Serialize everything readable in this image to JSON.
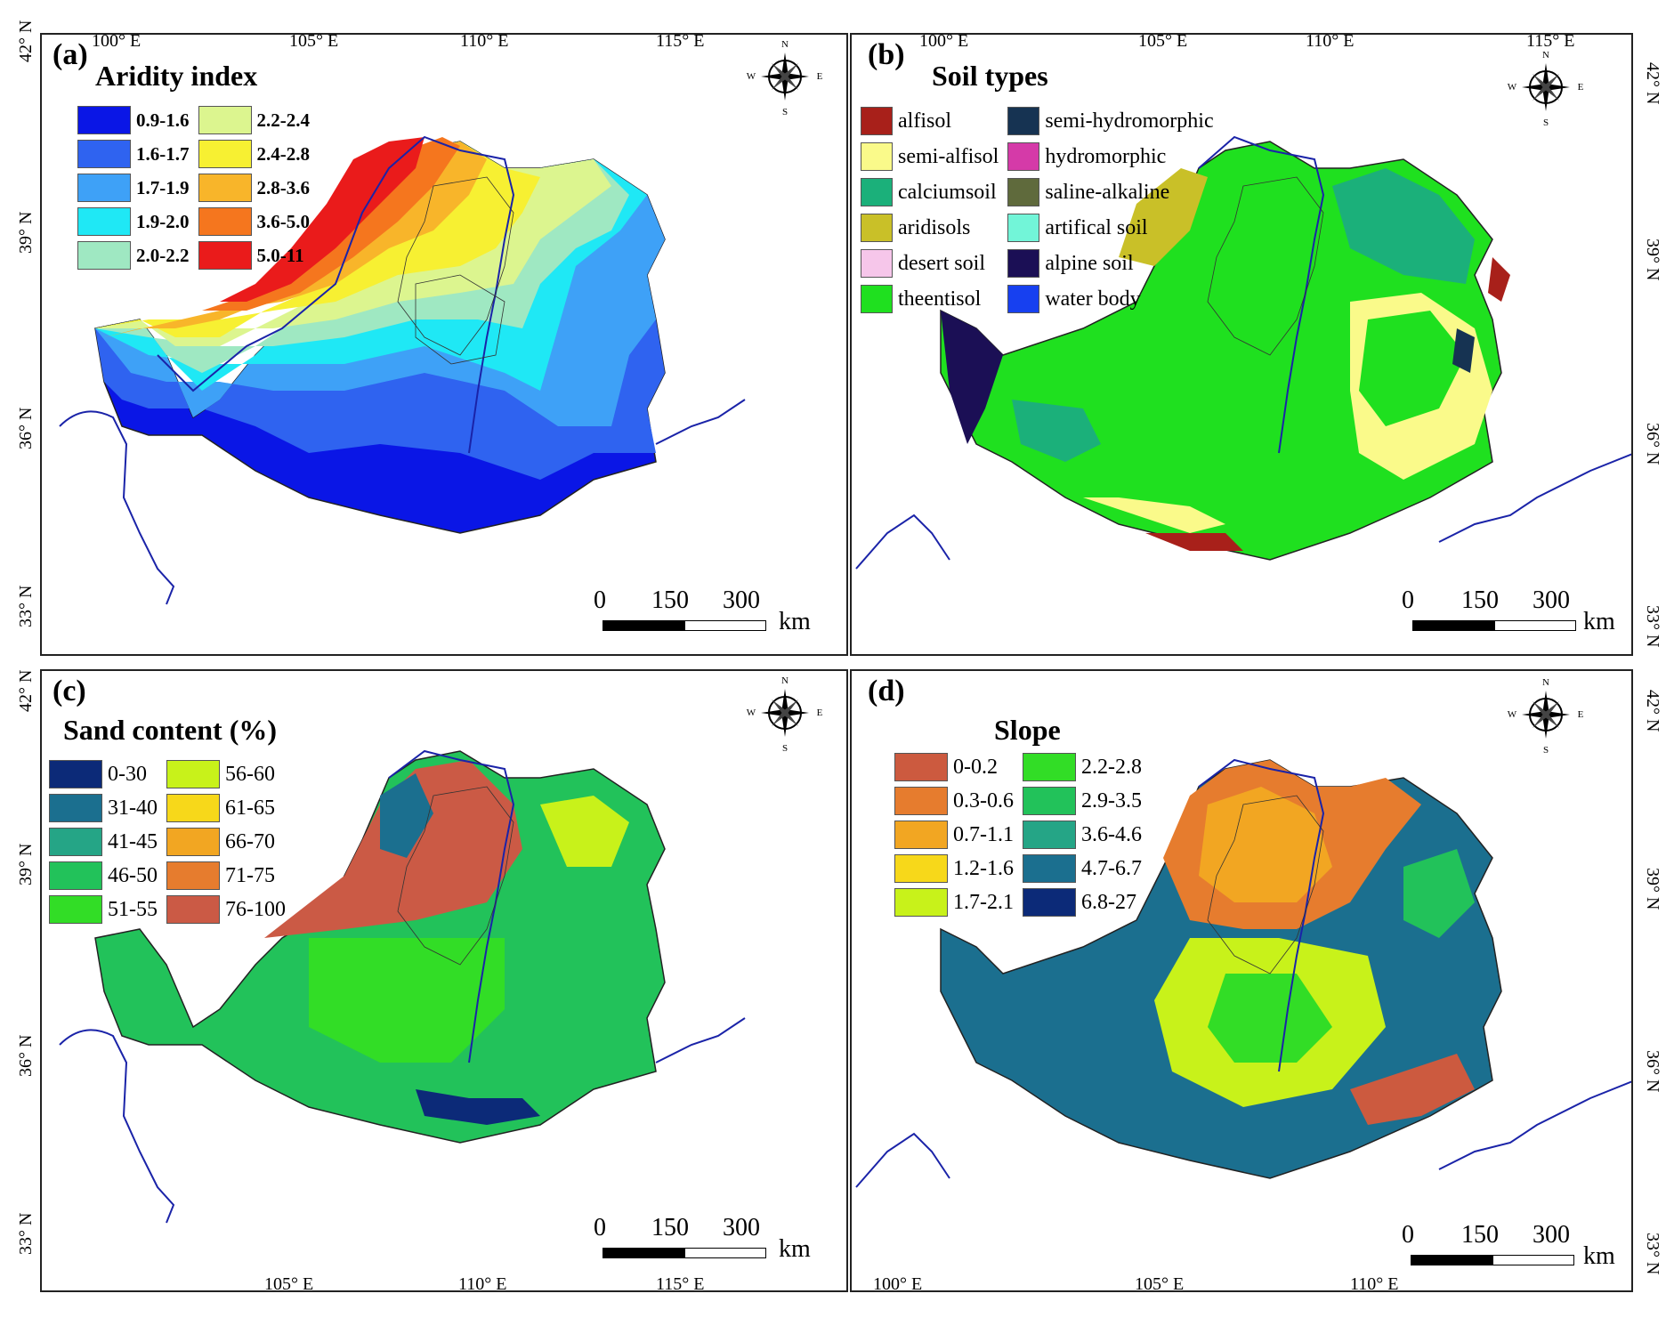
{
  "lon_top": [
    "100° E",
    "105° E",
    "110° E",
    "115° E"
  ],
  "lon_bottom_c": [
    "105° E",
    "110° E",
    "115° E"
  ],
  "lon_bottom_d": [
    "100° E",
    "105° E",
    "110° E"
  ],
  "lat_labels": [
    "42° N",
    "39° N",
    "36° N",
    "33° N"
  ],
  "compass": {
    "n": "N",
    "s": "S",
    "e": "E",
    "w": "W"
  },
  "scale": {
    "zero": "0",
    "mid": "150",
    "max": "300",
    "unit": "km"
  },
  "panels": {
    "a": {
      "label": "(a)",
      "legend_title": "Aridity index",
      "items": [
        {
          "label": "0.9-1.6",
          "color": "#0a16e6"
        },
        {
          "label": "1.6-1.7",
          "color": "#2f63f0"
        },
        {
          "label": "1.7-1.9",
          "color": "#3ea1f7"
        },
        {
          "label": "1.9-2.0",
          "color": "#1fe8f5"
        },
        {
          "label": "2.0-2.2",
          "color": "#9fe8c2"
        },
        {
          "label": "2.2-2.4",
          "color": "#dcf58f"
        },
        {
          "label": "2.4-2.8",
          "color": "#f7f032"
        },
        {
          "label": "2.8-3.6",
          "color": "#f8b52a"
        },
        {
          "label": "3.6-5.0",
          "color": "#f5761e"
        },
        {
          "label": "5.0-11",
          "color": "#ea1b1b"
        }
      ]
    },
    "b": {
      "label": "(b)",
      "legend_title": "Soil types",
      "items": [
        {
          "label": "alfisol",
          "color": "#a8201a"
        },
        {
          "label": "semi-alfisol",
          "color": "#fafa8a"
        },
        {
          "label": "calciumsoil",
          "color": "#1bb07a"
        },
        {
          "label": "aridisols",
          "color": "#c9c028"
        },
        {
          "label": "desert soil",
          "color": "#f6c6ea"
        },
        {
          "label": "theentisol",
          "color": "#1fe01f"
        },
        {
          "label": "semi-hydromorphic",
          "color": "#163352"
        },
        {
          "label": "hydromorphic",
          "color": "#d53aa8"
        },
        {
          "label": "saline-alkaline",
          "color": "#5f6a3c"
        },
        {
          "label": "artifical soil",
          "color": "#72f5d8"
        },
        {
          "label": "alpine soil",
          "color": "#1b0f55"
        },
        {
          "label": "water body",
          "color": "#1740f0"
        }
      ]
    },
    "c": {
      "label": "(c)",
      "legend_title": "Sand content (%)",
      "items": [
        {
          "label": "0-30",
          "color": "#0c2a78"
        },
        {
          "label": "31-40",
          "color": "#1b6f8f"
        },
        {
          "label": "41-45",
          "color": "#25a586"
        },
        {
          "label": "46-50",
          "color": "#22c25a"
        },
        {
          "label": "51-55",
          "color": "#32dd26"
        },
        {
          "label": "56-60",
          "color": "#c8f21a"
        },
        {
          "label": "61-65",
          "color": "#f7d81a"
        },
        {
          "label": "66-70",
          "color": "#f2a622"
        },
        {
          "label": "71-75",
          "color": "#e67c2e"
        },
        {
          "label": "76-100",
          "color": "#cb5a45"
        }
      ]
    },
    "d": {
      "label": "(d)",
      "legend_title": "Slope",
      "items": [
        {
          "label": "0-0.2",
          "color": "#cc5a3f"
        },
        {
          "label": "0.3-0.6",
          "color": "#e67c2e"
        },
        {
          "label": "0.7-1.1",
          "color": "#f2a622"
        },
        {
          "label": "1.2-1.6",
          "color": "#f7d81a"
        },
        {
          "label": "1.7-2.1",
          "color": "#c8f21a"
        },
        {
          "label": "2.2-2.8",
          "color": "#32dd26"
        },
        {
          "label": "2.9-3.5",
          "color": "#22c25a"
        },
        {
          "label": "3.6-4.6",
          "color": "#25a586"
        },
        {
          "label": "4.7-6.7",
          "color": "#1b6f8f"
        },
        {
          "label": "6.8-27",
          "color": "#0c2a78"
        }
      ]
    }
  }
}
